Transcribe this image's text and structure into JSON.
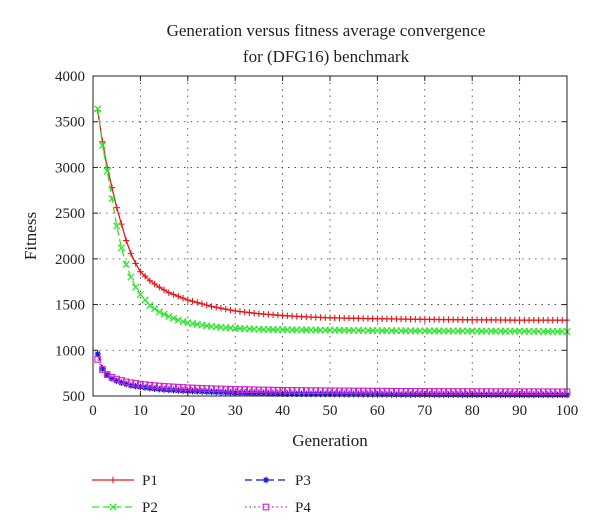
{
  "chart_data": {
    "type": "line",
    "title": [
      "Generation versus fitness average convergence",
      "for (DFG16) benchmark"
    ],
    "xlabel": "Generation",
    "ylabel": "Fitness",
    "xlim": [
      0,
      100
    ],
    "ylim": [
      500,
      4000
    ],
    "xticks": [
      0,
      10,
      20,
      30,
      40,
      50,
      60,
      70,
      80,
      90,
      100
    ],
    "yticks": [
      500,
      1000,
      1500,
      2000,
      2500,
      3000,
      3500,
      4000
    ],
    "grid": true,
    "legend_position": "bottom",
    "series": [
      {
        "name": "P1",
        "color": "#e8161b",
        "marker": "plus",
        "line": "solid",
        "points": [
          [
            1,
            3620
          ],
          [
            2,
            3280
          ],
          [
            3,
            3000
          ],
          [
            4,
            2780
          ],
          [
            5,
            2560
          ],
          [
            6,
            2380
          ],
          [
            7,
            2200
          ],
          [
            8,
            2060
          ],
          [
            9,
            1950
          ],
          [
            10,
            1860
          ],
          [
            12,
            1760
          ],
          [
            14,
            1690
          ],
          [
            16,
            1630
          ],
          [
            18,
            1590
          ],
          [
            20,
            1550
          ],
          [
            25,
            1480
          ],
          [
            30,
            1430
          ],
          [
            35,
            1400
          ],
          [
            40,
            1380
          ],
          [
            45,
            1365
          ],
          [
            50,
            1355
          ],
          [
            60,
            1345
          ],
          [
            70,
            1338
          ],
          [
            80,
            1333
          ],
          [
            90,
            1330
          ],
          [
            100,
            1330
          ]
        ]
      },
      {
        "name": "P2",
        "color": "#2ee82e",
        "marker": "x",
        "line": "dashed",
        "points": [
          [
            1,
            3640
          ],
          [
            2,
            3240
          ],
          [
            3,
            2960
          ],
          [
            4,
            2660
          ],
          [
            5,
            2360
          ],
          [
            6,
            2120
          ],
          [
            7,
            1940
          ],
          [
            8,
            1800
          ],
          [
            9,
            1690
          ],
          [
            10,
            1610
          ],
          [
            12,
            1490
          ],
          [
            14,
            1420
          ],
          [
            16,
            1370
          ],
          [
            18,
            1330
          ],
          [
            20,
            1300
          ],
          [
            25,
            1260
          ],
          [
            30,
            1240
          ],
          [
            35,
            1230
          ],
          [
            40,
            1225
          ],
          [
            50,
            1220
          ],
          [
            60,
            1215
          ],
          [
            70,
            1212
          ],
          [
            80,
            1210
          ],
          [
            90,
            1208
          ],
          [
            100,
            1205
          ]
        ]
      },
      {
        "name": "P3",
        "color": "#1515d8",
        "marker": "star",
        "line": "dashed",
        "points": [
          [
            1,
            960
          ],
          [
            2,
            800
          ],
          [
            3,
            730
          ],
          [
            4,
            690
          ],
          [
            5,
            665
          ],
          [
            6,
            645
          ],
          [
            7,
            630
          ],
          [
            8,
            615
          ],
          [
            10,
            600
          ],
          [
            12,
            585
          ],
          [
            15,
            570
          ],
          [
            20,
            555
          ],
          [
            25,
            545
          ],
          [
            30,
            535
          ],
          [
            40,
            525
          ],
          [
            50,
            520
          ],
          [
            60,
            517
          ],
          [
            70,
            515
          ],
          [
            80,
            513
          ],
          [
            90,
            512
          ],
          [
            100,
            511
          ]
        ]
      },
      {
        "name": "P4",
        "color": "#d020d0",
        "marker": "square",
        "line": "dotted",
        "points": [
          [
            1,
            900
          ],
          [
            2,
            790
          ],
          [
            3,
            735
          ],
          [
            4,
            705
          ],
          [
            5,
            685
          ],
          [
            6,
            670
          ],
          [
            7,
            655
          ],
          [
            8,
            645
          ],
          [
            10,
            630
          ],
          [
            12,
            618
          ],
          [
            15,
            605
          ],
          [
            20,
            590
          ],
          [
            25,
            580
          ],
          [
            30,
            572
          ],
          [
            40,
            562
          ],
          [
            50,
            557
          ],
          [
            60,
            553
          ],
          [
            70,
            550
          ],
          [
            80,
            548
          ],
          [
            90,
            547
          ],
          [
            100,
            546
          ]
        ]
      }
    ]
  }
}
